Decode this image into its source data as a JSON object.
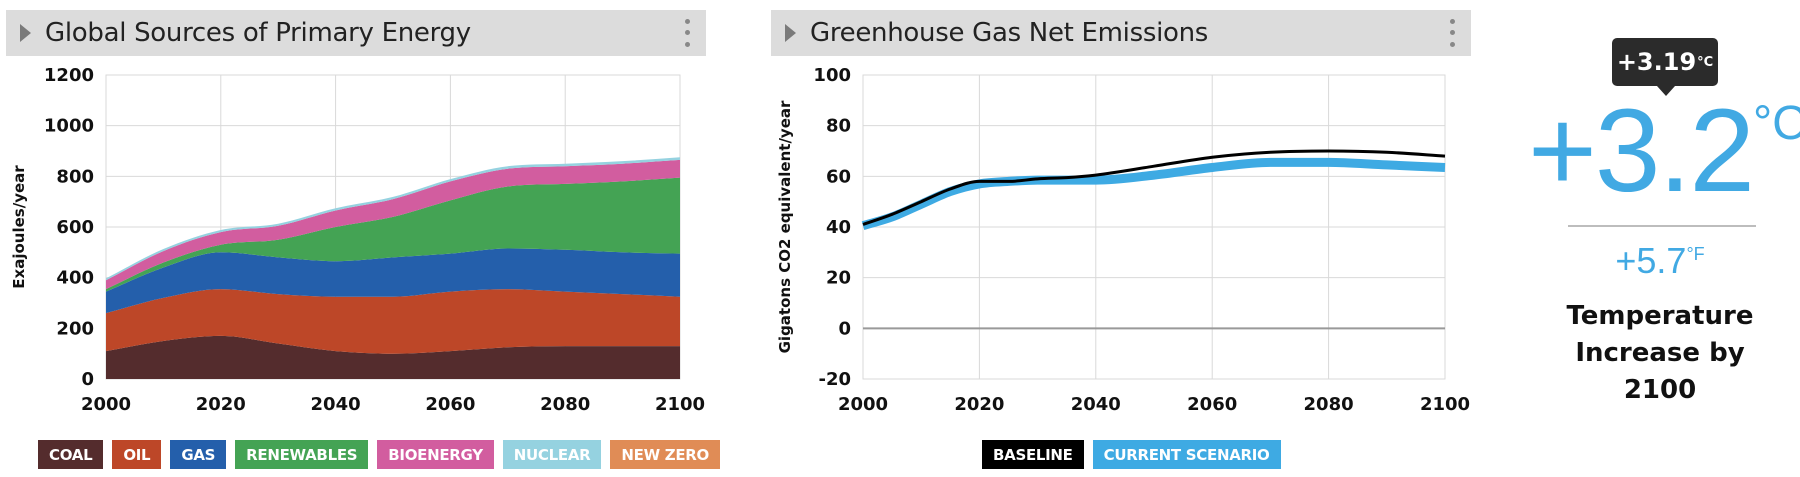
{
  "panels": {
    "energy": {
      "title": "Global Sources of Primary Energy"
    },
    "emissions": {
      "title": "Greenhouse Gas Net Emissions"
    }
  },
  "colors": {
    "coal": "#542c2d",
    "oil": "#bd4728",
    "gas": "#245fab",
    "renewables": "#44a354",
    "bioenergy": "#d25d9f",
    "nuclear": "#95d2e0",
    "new_zero": "#e08c56",
    "baseline": "#000000",
    "current_scenario": "#3eaae3",
    "temperature": "#41a9e3"
  },
  "chart_data": [
    {
      "type": "area",
      "stacked": true,
      "title": "Global Sources of Primary Energy",
      "xlabel": "",
      "ylabel": "Exajoules/year",
      "xlim": [
        2000,
        2100
      ],
      "ylim": [
        0,
        1200
      ],
      "xticks": [
        "2000",
        "2020",
        "2040",
        "2060",
        "2080",
        "2100"
      ],
      "yticks": [
        "0",
        "200",
        "400",
        "600",
        "800",
        "1000",
        "1200"
      ],
      "grid": true,
      "x": [
        2000,
        2010,
        2020,
        2030,
        2040,
        2050,
        2060,
        2070,
        2080,
        2090,
        2100
      ],
      "series": [
        {
          "name": "COAL",
          "key": "coal",
          "values": [
            110,
            150,
            170,
            140,
            110,
            100,
            110,
            125,
            130,
            130,
            130
          ]
        },
        {
          "name": "OIL",
          "key": "oil",
          "values": [
            150,
            170,
            185,
            195,
            215,
            225,
            235,
            230,
            215,
            205,
            195
          ]
        },
        {
          "name": "GAS",
          "key": "gas",
          "values": [
            85,
            120,
            145,
            145,
            140,
            155,
            150,
            160,
            165,
            165,
            170
          ]
        },
        {
          "name": "RENEWABLES",
          "key": "renewables",
          "values": [
            10,
            20,
            30,
            70,
            135,
            160,
            210,
            245,
            260,
            280,
            300
          ]
        },
        {
          "name": "BIOENERGY",
          "key": "bioenergy",
          "values": [
            35,
            45,
            50,
            55,
            65,
            70,
            75,
            70,
            70,
            70,
            70
          ]
        },
        {
          "name": "NUCLEAR",
          "key": "nuclear",
          "values": [
            7,
            8,
            8,
            8,
            9,
            9,
            9,
            10,
            10,
            10,
            10
          ]
        },
        {
          "name": "NEW ZERO",
          "key": "new_zero",
          "values": [
            0,
            0,
            0,
            0,
            0,
            0,
            0,
            0,
            0,
            0,
            0
          ]
        }
      ]
    },
    {
      "type": "line",
      "title": "Greenhouse Gas Net Emissions",
      "xlabel": "",
      "ylabel": "Gigatons CO2 equivalent/year",
      "xlim": [
        2000,
        2100
      ],
      "ylim": [
        -20,
        100
      ],
      "xticks": [
        "2000",
        "2020",
        "2040",
        "2060",
        "2080",
        "2100"
      ],
      "yticks": [
        "-20",
        "0",
        "20",
        "40",
        "60",
        "80",
        "100"
      ],
      "grid": true,
      "x": [
        2000,
        2005,
        2010,
        2015,
        2020,
        2025,
        2030,
        2035,
        2040,
        2050,
        2060,
        2070,
        2080,
        2090,
        2100
      ],
      "series": [
        {
          "name": "BASELINE",
          "key": "baseline",
          "values": [
            41,
            45,
            50,
            55,
            58,
            58,
            59,
            59.5,
            60.5,
            64,
            67.5,
            69.5,
            70,
            69.5,
            68
          ]
        },
        {
          "name": "CURRENT SCENARIO",
          "key": "current_scenario",
          "values": [
            40.5,
            44,
            49,
            54,
            57,
            58,
            58.5,
            58.5,
            58.5,
            60.5,
            63.5,
            65.5,
            65.5,
            64.5,
            63.5
          ]
        }
      ]
    }
  ],
  "temperature": {
    "tooltip_value": "+3.19",
    "tooltip_unit": "°C",
    "value_c": "+3.2",
    "unit_c": "°C",
    "value_f": "+5.7",
    "unit_f": "°F",
    "caption": "Temperature Increase by 2100"
  }
}
